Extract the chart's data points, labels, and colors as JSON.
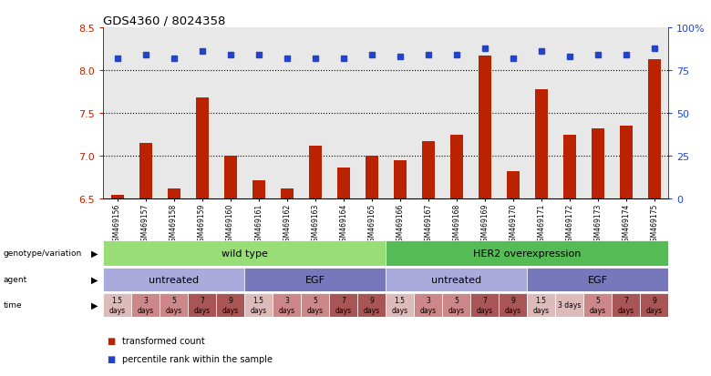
{
  "title": "GDS4360 / 8024358",
  "samples": [
    "GSM469156",
    "GSM469157",
    "GSM469158",
    "GSM469159",
    "GSM469160",
    "GSM469161",
    "GSM469162",
    "GSM469163",
    "GSM469164",
    "GSM469165",
    "GSM469166",
    "GSM469167",
    "GSM469168",
    "GSM469169",
    "GSM469170",
    "GSM469171",
    "GSM469172",
    "GSM469173",
    "GSM469174",
    "GSM469175"
  ],
  "bar_values": [
    6.55,
    7.15,
    6.62,
    7.68,
    7.0,
    6.72,
    6.62,
    7.12,
    6.87,
    7.0,
    6.95,
    7.17,
    7.25,
    8.17,
    6.82,
    7.78,
    7.25,
    7.32,
    7.35,
    8.13
  ],
  "dot_values": [
    82,
    84,
    82,
    86,
    84,
    84,
    82,
    82,
    82,
    84,
    83,
    84,
    84,
    88,
    82,
    86,
    83,
    84,
    84,
    88
  ],
  "ylim_left": [
    6.5,
    8.5
  ],
  "ylim_right": [
    0,
    100
  ],
  "yticks_left": [
    6.5,
    7.0,
    7.5,
    8.0,
    8.5
  ],
  "yticks_right": [
    0,
    25,
    50,
    75,
    100
  ],
  "ytick_labels_right": [
    "0",
    "25",
    "50",
    "75",
    "100%"
  ],
  "bar_color": "#bb2200",
  "dot_color": "#2244cc",
  "plot_bg_color": "#e8e8e8",
  "genotype_colors": [
    "#99dd77",
    "#55bb55"
  ],
  "genotype_texts": [
    "wild type",
    "HER2 overexpression"
  ],
  "genotype_ranges": [
    [
      0,
      9
    ],
    [
      10,
      19
    ]
  ],
  "agent_colors": [
    "#aaaadd",
    "#7777bb",
    "#aaaadd",
    "#7777bb"
  ],
  "agent_texts": [
    "untreated",
    "EGF",
    "untreated",
    "EGF"
  ],
  "agent_ranges": [
    [
      0,
      4
    ],
    [
      5,
      9
    ],
    [
      10,
      14
    ],
    [
      15,
      19
    ]
  ],
  "time_colors": [
    "#ddbbbb",
    "#cc8888",
    "#cc8888",
    "#aa5555",
    "#aa5555",
    "#ddbbbb",
    "#cc8888",
    "#cc8888",
    "#aa5555",
    "#aa5555",
    "#ddbbbb",
    "#cc8888",
    "#cc8888",
    "#aa5555",
    "#aa5555",
    "#ddbbbb",
    "#ddbbbb",
    "#cc8888",
    "#aa5555",
    "#aa5555"
  ],
  "time_texts": [
    "1.5\ndays",
    "3\ndays",
    "5\ndays",
    "7\ndays",
    "9\ndays",
    "1.5\ndays",
    "3\ndays",
    "5\ndays",
    "7\ndays",
    "9\ndays",
    "1.5\ndays",
    "3\ndays",
    "5\ndays",
    "7\ndays",
    "9\ndays",
    "1.5\ndays",
    "3 days",
    "5\ndays",
    "7\ndays",
    "9\ndays"
  ],
  "legend_labels": [
    "transformed count",
    "percentile rank within the sample"
  ]
}
